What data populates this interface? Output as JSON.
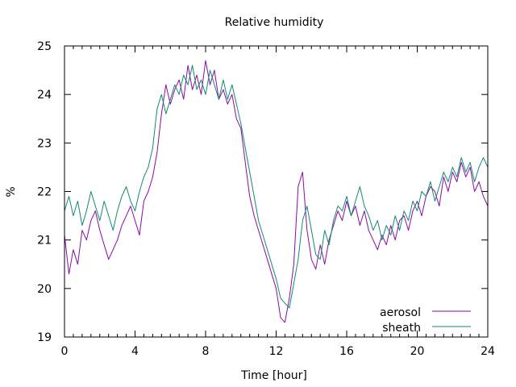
{
  "chart_data": {
    "type": "line",
    "title": "Relative humidity",
    "xlabel": "Time [hour]",
    "ylabel": "%",
    "xlim": [
      0,
      24
    ],
    "ylim": [
      19,
      25
    ],
    "xticks": [
      0,
      4,
      8,
      12,
      16,
      20,
      24
    ],
    "yticks": [
      19,
      20,
      21,
      22,
      23,
      24,
      25
    ],
    "grid": false,
    "legend_position": "bottom-right",
    "series": [
      {
        "name": "aerosol",
        "color": "#8b0aa5",
        "x": [
          0,
          0.25,
          0.5,
          0.75,
          1,
          1.25,
          1.5,
          1.75,
          2,
          2.25,
          2.5,
          2.75,
          3,
          3.25,
          3.5,
          3.75,
          4,
          4.25,
          4.5,
          4.75,
          5,
          5.25,
          5.5,
          5.75,
          6,
          6.25,
          6.5,
          6.75,
          7,
          7.25,
          7.5,
          7.75,
          8,
          8.25,
          8.5,
          8.75,
          9,
          9.25,
          9.5,
          9.75,
          10,
          10.25,
          10.5,
          10.75,
          11,
          11.25,
          11.5,
          11.75,
          12,
          12.25,
          12.5,
          12.75,
          13,
          13.25,
          13.5,
          13.75,
          14,
          14.25,
          14.5,
          14.75,
          15,
          15.25,
          15.5,
          15.75,
          16,
          16.25,
          16.5,
          16.75,
          17,
          17.25,
          17.5,
          17.75,
          18,
          18.25,
          18.5,
          18.75,
          19,
          19.25,
          19.5,
          19.75,
          20,
          20.25,
          20.5,
          20.75,
          21,
          21.25,
          21.5,
          21.75,
          22,
          22.25,
          22.5,
          22.75,
          23,
          23.25,
          23.5,
          23.75,
          24
        ],
        "y": [
          21.1,
          20.3,
          20.8,
          20.5,
          21.2,
          21.0,
          21.4,
          21.6,
          21.2,
          20.9,
          20.6,
          20.8,
          21.0,
          21.3,
          21.5,
          21.7,
          21.4,
          21.1,
          21.8,
          22.0,
          22.3,
          22.8,
          23.6,
          24.2,
          23.8,
          24.1,
          24.3,
          23.9,
          24.6,
          24.1,
          24.4,
          24.0,
          24.7,
          24.2,
          24.5,
          23.9,
          24.1,
          23.8,
          24.0,
          23.5,
          23.3,
          22.6,
          21.9,
          21.5,
          21.2,
          20.9,
          20.6,
          20.3,
          20.0,
          19.4,
          19.3,
          19.8,
          20.5,
          22.1,
          22.4,
          21.2,
          20.6,
          20.4,
          20.9,
          20.5,
          21.0,
          21.3,
          21.6,
          21.4,
          21.8,
          21.5,
          21.7,
          21.3,
          21.6,
          21.2,
          21.0,
          20.8,
          21.1,
          20.9,
          21.3,
          21.0,
          21.4,
          21.5,
          21.2,
          21.6,
          21.8,
          21.5,
          21.9,
          22.1,
          22.0,
          21.7,
          22.3,
          22.0,
          22.4,
          22.2,
          22.6,
          22.3,
          22.5,
          22.0,
          22.2,
          21.9,
          21.7
        ]
      },
      {
        "name": "sheath",
        "color": "#108a72",
        "x": [
          0,
          0.25,
          0.5,
          0.75,
          1,
          1.25,
          1.5,
          1.75,
          2,
          2.25,
          2.5,
          2.75,
          3,
          3.25,
          3.5,
          3.75,
          4,
          4.25,
          4.5,
          4.75,
          5,
          5.25,
          5.5,
          5.75,
          6,
          6.25,
          6.5,
          6.75,
          7,
          7.25,
          7.5,
          7.75,
          8,
          8.25,
          8.5,
          8.75,
          9,
          9.25,
          9.5,
          9.75,
          10,
          10.25,
          10.5,
          10.75,
          11,
          11.25,
          11.5,
          11.75,
          12,
          12.25,
          12.5,
          12.75,
          13,
          13.25,
          13.5,
          13.75,
          14,
          14.25,
          14.5,
          14.75,
          15,
          15.25,
          15.5,
          15.75,
          16,
          16.25,
          16.5,
          16.75,
          17,
          17.25,
          17.5,
          17.75,
          18,
          18.25,
          18.5,
          18.75,
          19,
          19.25,
          19.5,
          19.75,
          20,
          20.25,
          20.5,
          20.75,
          21,
          21.25,
          21.5,
          21.75,
          22,
          22.25,
          22.5,
          22.75,
          23,
          23.25,
          23.5,
          23.75,
          24
        ],
        "y": [
          21.6,
          21.9,
          21.5,
          21.8,
          21.3,
          21.6,
          22.0,
          21.7,
          21.4,
          21.8,
          21.5,
          21.2,
          21.6,
          21.9,
          22.1,
          21.8,
          21.6,
          22.0,
          22.3,
          22.5,
          22.9,
          23.7,
          24.0,
          23.6,
          23.9,
          24.2,
          24.0,
          24.4,
          24.2,
          24.6,
          24.1,
          24.3,
          24.0,
          24.5,
          24.2,
          23.9,
          24.3,
          23.9,
          24.2,
          23.8,
          23.4,
          22.9,
          22.4,
          21.9,
          21.4,
          21.1,
          20.8,
          20.5,
          20.2,
          19.8,
          19.7,
          19.6,
          20.1,
          20.6,
          21.4,
          21.7,
          21.2,
          20.7,
          20.6,
          21.2,
          20.9,
          21.4,
          21.7,
          21.6,
          21.9,
          21.5,
          21.8,
          22.1,
          21.7,
          21.5,
          21.2,
          21.4,
          21.0,
          21.3,
          21.1,
          21.5,
          21.2,
          21.6,
          21.4,
          21.8,
          21.6,
          22.0,
          21.9,
          22.2,
          21.8,
          22.1,
          22.4,
          22.2,
          22.5,
          22.3,
          22.7,
          22.4,
          22.6,
          22.2,
          22.5,
          22.7,
          22.5
        ]
      }
    ]
  }
}
